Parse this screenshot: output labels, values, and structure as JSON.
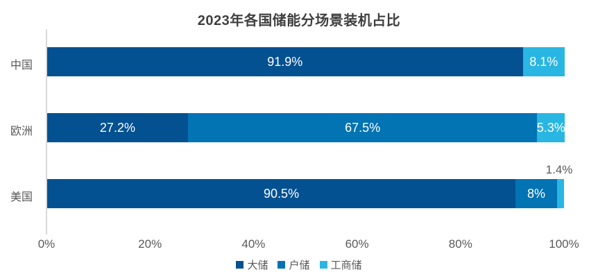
{
  "chart_data": {
    "type": "bar",
    "orientation": "horizontal",
    "stacked": true,
    "title": "2023年各国储能分场景装机占比",
    "categories": [
      "中国",
      "欧洲",
      "美国"
    ],
    "series": [
      {
        "name": "大储",
        "color": "#045192",
        "values": [
          91.9,
          27.2,
          90.5
        ]
      },
      {
        "name": "户储",
        "color": "#0273b3",
        "values": [
          0.0,
          67.5,
          8.0
        ]
      },
      {
        "name": "工商储",
        "color": "#29b6e2",
        "values": [
          8.1,
          5.3,
          1.4
        ]
      }
    ],
    "labels": [
      [
        "91.9%",
        "",
        "8.1%"
      ],
      [
        "27.2%",
        "67.5%",
        "5.3%"
      ],
      [
        "90.5%",
        "8%",
        "1.4%"
      ]
    ],
    "x_ticks": [
      "0%",
      "20%",
      "40%",
      "60%",
      "80%",
      "100%"
    ],
    "tick_values": [
      0,
      20,
      40,
      60,
      80,
      100
    ],
    "xlim": [
      0,
      100
    ],
    "grid": false,
    "legend_position": "bottom",
    "axis_line_color": "#d9d9d9",
    "label_color_inside": "#ffffff",
    "label_color_outside": "#595959"
  }
}
